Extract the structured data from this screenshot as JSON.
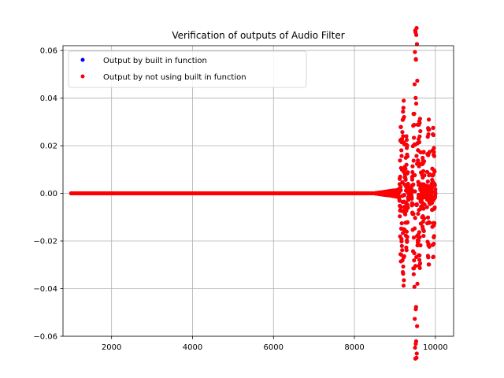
{
  "chart_data": {
    "type": "scatter",
    "title": "Verification of outputs of Audio Filter",
    "xlabel": "",
    "ylabel": "",
    "xlim": [
      800,
      10450
    ],
    "ylim": [
      -0.06,
      0.062
    ],
    "x_ticks": [
      2000,
      4000,
      6000,
      8000,
      10000
    ],
    "x_tick_labels": [
      "2000",
      "4000",
      "6000",
      "8000",
      "10000"
    ],
    "y_ticks": [
      -0.06,
      -0.04,
      -0.02,
      0.0,
      0.02,
      0.04,
      0.06
    ],
    "y_tick_labels": [
      "−0.06",
      "−0.04",
      "−0.02",
      "0.00",
      "0.02",
      "0.04",
      "0.06"
    ],
    "grid": true,
    "legend_position": "top-left",
    "x_range": [
      1000,
      10000
    ],
    "series": [
      {
        "name": "Output by built in function",
        "color": "#0000ff",
        "marker": "circle",
        "shape_summary": "Approximately zero from x=1000 to x≈8500, then a burst of oscillations; overlapped by the red series",
        "x": [
          1000,
          8000,
          8700,
          9000,
          9150,
          9200,
          9250,
          9300,
          9350,
          9400,
          9450,
          9500,
          9550,
          9600,
          9650,
          9700,
          9750,
          9800,
          9850,
          9900,
          9950,
          10000
        ],
        "y": [
          0.0,
          0.0,
          0.001,
          0.003,
          0.025,
          -0.043,
          0.035,
          -0.025,
          0.02,
          -0.01,
          0.015,
          0.058,
          -0.054,
          0.037,
          -0.02,
          0.005,
          -0.015,
          0.035,
          -0.035,
          0.015,
          -0.006,
          -0.03
        ]
      },
      {
        "name": "Output by not using built in function",
        "color": "#ff0000",
        "marker": "circle",
        "shape_summary": "Same values as the blue series",
        "x": [
          1000,
          8000,
          8700,
          9000,
          9150,
          9200,
          9250,
          9300,
          9350,
          9400,
          9450,
          9500,
          9550,
          9600,
          9650,
          9700,
          9750,
          9800,
          9850,
          9900,
          9950,
          10000
        ],
        "y": [
          0.0,
          0.0,
          0.001,
          0.003,
          0.025,
          -0.043,
          0.035,
          -0.025,
          0.02,
          -0.01,
          0.015,
          0.058,
          -0.054,
          0.037,
          -0.02,
          0.005,
          -0.015,
          0.035,
          -0.035,
          0.015,
          -0.006,
          -0.03
        ]
      }
    ]
  }
}
